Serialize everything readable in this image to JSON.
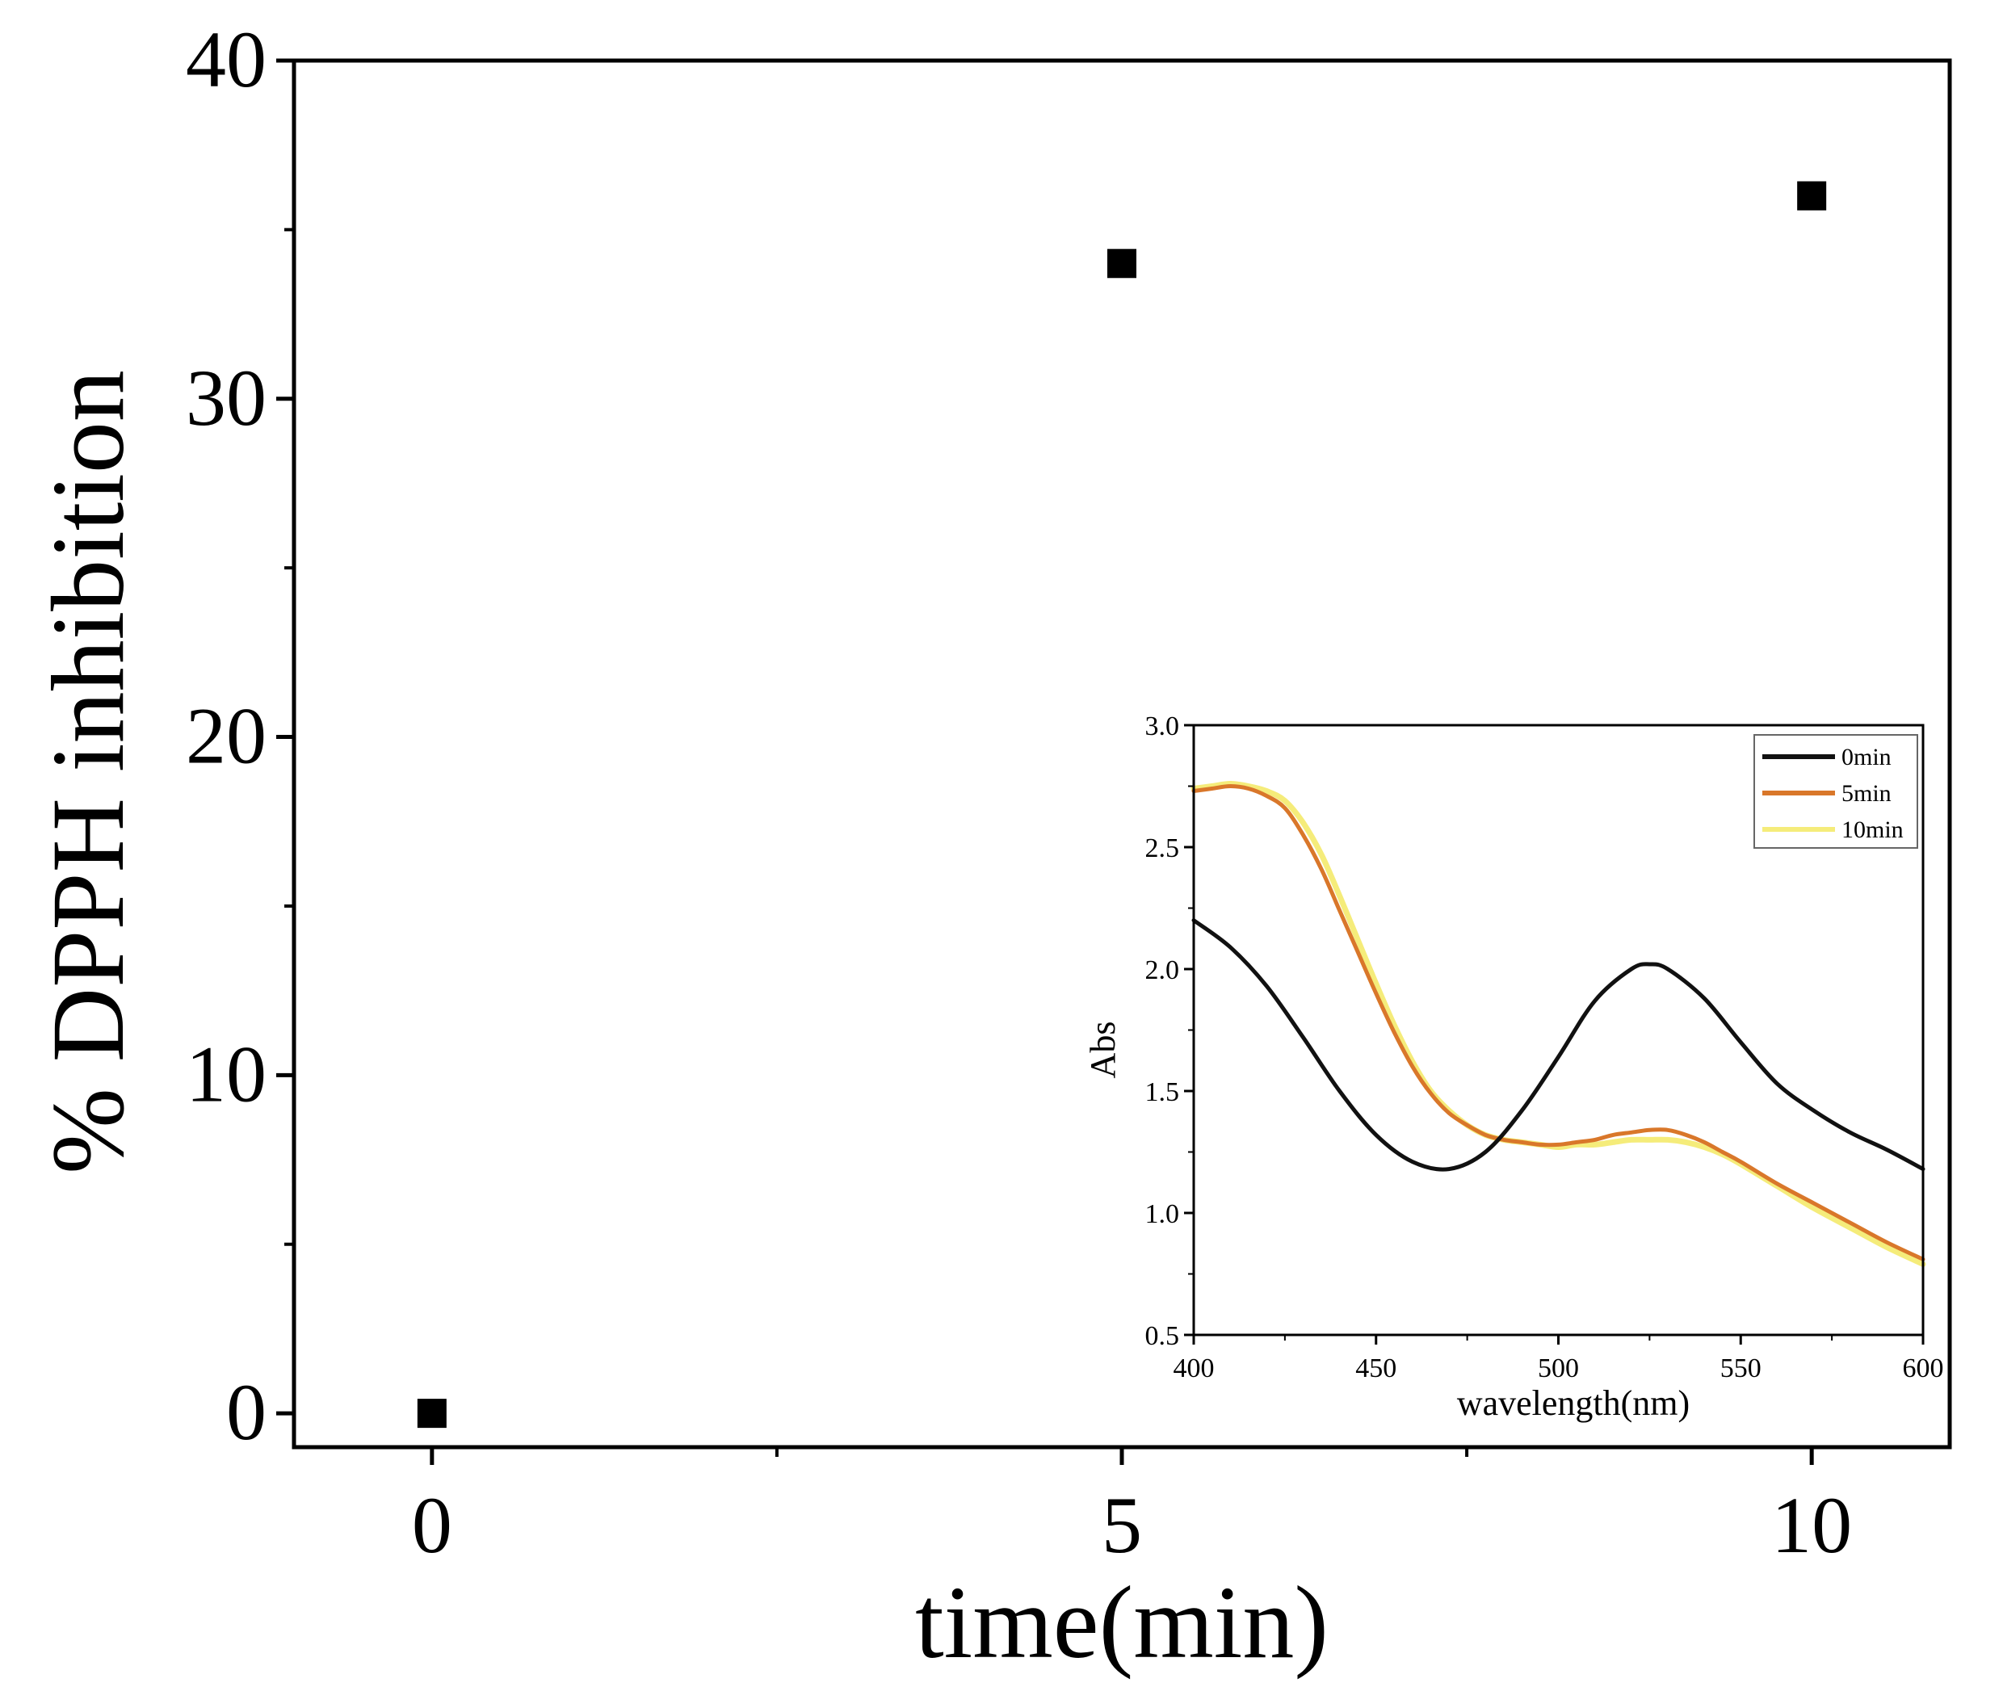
{
  "chart_data": [
    {
      "type": "scatter",
      "title": "",
      "xlabel": "time(min)",
      "ylabel": "% DPPH inhibition",
      "xlim": [
        -1,
        11
      ],
      "ylim": [
        -1,
        40
      ],
      "x_ticks": [
        0,
        5,
        10
      ],
      "x_minor_ticks": [
        2.5,
        7.5
      ],
      "y_ticks": [
        0,
        10,
        20,
        30,
        40
      ],
      "y_minor_ticks": [
        5,
        15,
        25,
        35
      ],
      "grid": false,
      "series": [
        {
          "name": "% DPPH inhibition",
          "marker": "square",
          "color": "#000000",
          "points": [
            {
              "x": 0,
              "y": 0
            },
            {
              "x": 5,
              "y": 34
            },
            {
              "x": 10,
              "y": 36
            }
          ]
        }
      ]
    },
    {
      "type": "line",
      "title": "",
      "placement": "inset, lower-right",
      "xlabel": "wavelength(nm)",
      "ylabel": "Abs",
      "xlim": [
        400,
        600
      ],
      "ylim": [
        0.5,
        3.0
      ],
      "x_ticks": [
        400,
        450,
        500,
        550,
        600
      ],
      "x_minor_ticks": [
        425,
        475,
        525,
        575
      ],
      "y_ticks": [
        0.5,
        1.0,
        1.5,
        2.0,
        2.5,
        3.0
      ],
      "y_tick_labels": [
        "0.5",
        "1.0",
        "1.5",
        "2.0",
        "2.5",
        "3.0"
      ],
      "y_minor_ticks": [
        0.75,
        1.25,
        1.75,
        2.25,
        2.75
      ],
      "legend": "top-right",
      "series": [
        {
          "name": "0min",
          "color": "#111111",
          "x": [
            400,
            410,
            420,
            430,
            440,
            450,
            460,
            470,
            480,
            490,
            500,
            510,
            520,
            525,
            530,
            540,
            550,
            560,
            570,
            580,
            590,
            600
          ],
          "y": [
            2.2,
            2.09,
            1.93,
            1.72,
            1.5,
            1.32,
            1.21,
            1.18,
            1.25,
            1.42,
            1.64,
            1.87,
            2.0,
            2.02,
            2.0,
            1.88,
            1.7,
            1.53,
            1.42,
            1.33,
            1.26,
            1.18
          ]
        },
        {
          "name": "5min",
          "color": "#d9772a",
          "x": [
            400,
            405,
            410,
            415,
            420,
            425,
            430,
            435,
            440,
            445,
            450,
            455,
            460,
            465,
            470,
            475,
            480,
            485,
            490,
            495,
            500,
            505,
            510,
            515,
            520,
            525,
            530,
            535,
            540,
            545,
            550,
            560,
            570,
            580,
            590,
            600
          ],
          "y": [
            2.73,
            2.74,
            2.75,
            2.74,
            2.71,
            2.66,
            2.55,
            2.41,
            2.24,
            2.07,
            1.9,
            1.74,
            1.6,
            1.49,
            1.41,
            1.36,
            1.32,
            1.3,
            1.29,
            1.28,
            1.28,
            1.29,
            1.3,
            1.32,
            1.33,
            1.34,
            1.34,
            1.32,
            1.29,
            1.25,
            1.21,
            1.12,
            1.04,
            0.96,
            0.88,
            0.81
          ]
        },
        {
          "name": "10min",
          "color": "#f5ec7a",
          "x": [
            400,
            405,
            410,
            415,
            420,
            425,
            430,
            435,
            440,
            445,
            450,
            455,
            460,
            465,
            470,
            475,
            480,
            485,
            490,
            495,
            500,
            505,
            510,
            515,
            520,
            525,
            530,
            535,
            540,
            545,
            550,
            560,
            570,
            580,
            590,
            600
          ],
          "y": [
            2.74,
            2.75,
            2.76,
            2.75,
            2.73,
            2.69,
            2.6,
            2.47,
            2.3,
            2.12,
            1.94,
            1.77,
            1.62,
            1.5,
            1.42,
            1.36,
            1.32,
            1.3,
            1.29,
            1.28,
            1.27,
            1.28,
            1.28,
            1.29,
            1.3,
            1.3,
            1.3,
            1.29,
            1.27,
            1.24,
            1.2,
            1.11,
            1.02,
            0.94,
            0.86,
            0.79
          ]
        }
      ]
    }
  ]
}
